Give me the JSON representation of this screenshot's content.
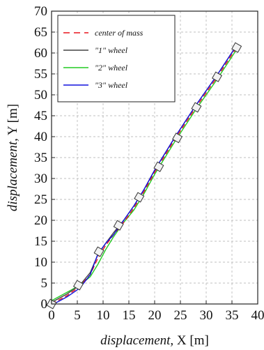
{
  "chart_data": {
    "type": "line",
    "xlabel": {
      "italic": "displacement,",
      "var": " X [m]"
    },
    "ylabel": {
      "italic": "displacement,",
      "var": " Y [m]"
    },
    "xlim": [
      0,
      40
    ],
    "ylim": [
      0,
      70
    ],
    "xticks": [
      "0",
      "5",
      "10",
      "15",
      "20",
      "25",
      "30",
      "35",
      "40"
    ],
    "yticks": [
      "0",
      "5",
      "10",
      "15",
      "20",
      "25",
      "30",
      "35",
      "40",
      "45",
      "50",
      "55",
      "60",
      "65",
      "70"
    ],
    "grid": true,
    "legend_position": "top-left",
    "series": [
      {
        "name": "center of mass",
        "color": "#e8141c",
        "dash": "dashed",
        "x": [
          0,
          3,
          5.5,
          7.5,
          9,
          10.5,
          12,
          14,
          16,
          18,
          20,
          24,
          28,
          32,
          36
        ],
        "y": [
          0,
          2,
          4.2,
          7,
          11,
          14,
          16.5,
          19.5,
          23,
          27,
          31.5,
          39.5,
          47,
          54,
          61.5
        ]
      },
      {
        "name": "\"1\" wheel",
        "color": "#444444",
        "dash": "solid",
        "x": [
          0,
          3,
          5.5,
          7.5,
          9,
          10.5,
          12,
          14,
          16,
          18,
          20,
          24,
          28,
          32,
          36
        ],
        "y": [
          0.4,
          2.4,
          4.5,
          7.5,
          11.8,
          14.5,
          17,
          20,
          23.5,
          27.5,
          32,
          40,
          47.5,
          54.5,
          62
        ]
      },
      {
        "name": "\"2\" wheel",
        "color": "#22cc22",
        "dash": "solid",
        "x": [
          0,
          3,
          5.5,
          7.5,
          9,
          10.5,
          12,
          14,
          16,
          18,
          20,
          24,
          28,
          32,
          36
        ],
        "y": [
          0.8,
          2.8,
          4.5,
          6.5,
          9.5,
          13,
          16,
          19.5,
          22.5,
          26.5,
          31,
          39,
          46.5,
          53.5,
          61
        ]
      },
      {
        "name": "\"3\" wheel",
        "color": "#1111dd",
        "dash": "solid",
        "x": [
          0,
          3,
          5.5,
          7.5,
          9,
          10.5,
          12,
          14,
          16,
          18,
          20,
          24,
          28,
          32,
          36
        ],
        "y": [
          -0.3,
          1.7,
          3.8,
          7,
          12,
          14.5,
          16.5,
          20,
          23.5,
          27.5,
          32,
          40,
          47.5,
          54.5,
          62
        ]
      }
    ],
    "markers": {
      "shape": "rotated-square",
      "points": [
        {
          "x": 0,
          "y": 0
        },
        {
          "x": 5.2,
          "y": 4.5
        },
        {
          "x": 9.2,
          "y": 12.5
        },
        {
          "x": 13,
          "y": 18.8
        },
        {
          "x": 17,
          "y": 25.5
        },
        {
          "x": 20.8,
          "y": 32.8
        },
        {
          "x": 24.4,
          "y": 39.7
        },
        {
          "x": 28.1,
          "y": 47
        },
        {
          "x": 32.1,
          "y": 54.3
        },
        {
          "x": 35.9,
          "y": 61.3
        }
      ]
    }
  }
}
